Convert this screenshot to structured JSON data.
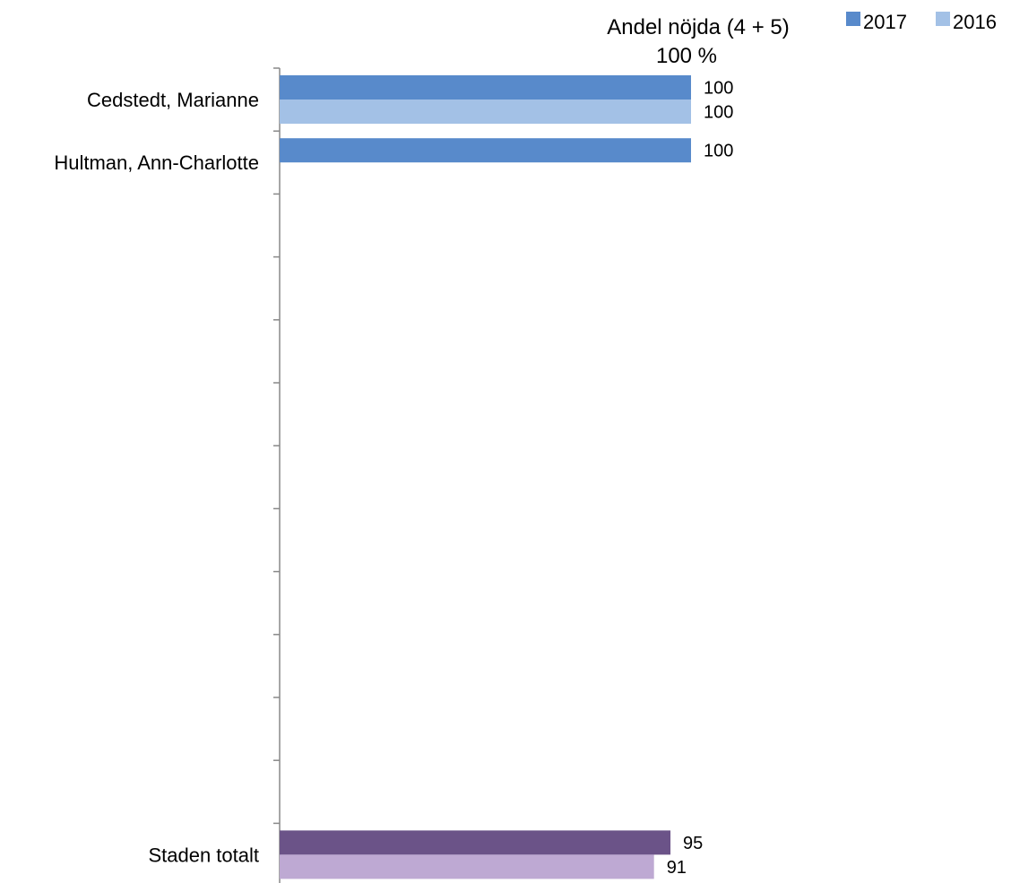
{
  "chart_data": {
    "type": "bar",
    "orientation": "horizontal",
    "title": "Andel nöjda (4 + 5)",
    "axis_max_label": "100 %",
    "xlim": [
      0,
      100
    ],
    "legend_position": "top-right",
    "categories": [
      "Cedstedt, Marianne",
      "Hultman, Ann-Charlotte",
      "",
      "",
      "",
      "",
      "",
      "",
      "",
      "",
      "",
      "",
      "Staden totalt"
    ],
    "series": [
      {
        "name": "2017",
        "color": "#588ACB",
        "values": [
          100,
          100,
          null,
          null,
          null,
          null,
          null,
          null,
          null,
          null,
          null,
          null,
          95
        ],
        "colors": [
          "#588ACB",
          "#588ACB",
          null,
          null,
          null,
          null,
          null,
          null,
          null,
          null,
          null,
          null,
          "#6B5388"
        ]
      },
      {
        "name": "2016",
        "color": "#A3C1E6",
        "values": [
          100,
          null,
          null,
          null,
          null,
          null,
          null,
          null,
          null,
          null,
          null,
          null,
          91
        ],
        "colors": [
          "#A3C1E6",
          null,
          null,
          null,
          null,
          null,
          null,
          null,
          null,
          null,
          null,
          null,
          "#BEA9D3"
        ]
      }
    ]
  }
}
